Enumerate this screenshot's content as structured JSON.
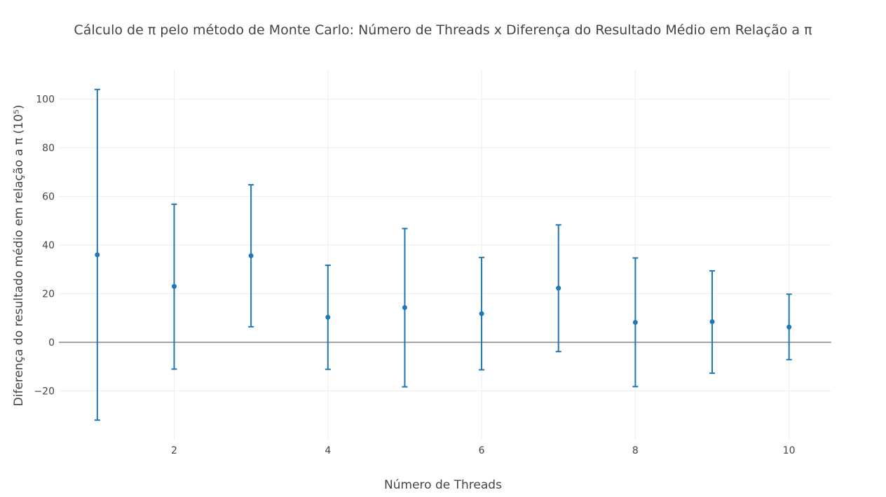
{
  "chart_data": {
    "type": "scatter",
    "title": "Cálculo de π pelo método de Monte Carlo: Número de Threads x Diferença do Resultado Médio  em Relação a  π",
    "xlabel": "Número de Threads",
    "ylabel": "Diferença do resultado médio em relação a π (10⁵)",
    "xlim": [
      0.5,
      10.55
    ],
    "ylim": [
      -40,
      112
    ],
    "xticks": [
      2,
      4,
      6,
      8,
      10
    ],
    "yticks": [
      -20,
      0,
      20,
      40,
      60,
      80,
      100
    ],
    "grid": true,
    "zero_line": true,
    "color": "#1f77b4",
    "series": [
      {
        "x": [
          1,
          2,
          3,
          4,
          5,
          6,
          7,
          8,
          9,
          10
        ],
        "y": [
          36.0,
          23.0,
          35.6,
          10.3,
          14.3,
          11.8,
          22.3,
          8.2,
          8.5,
          6.3
        ],
        "error_upper": [
          104.0,
          56.8,
          64.8,
          31.7,
          46.8,
          34.9,
          48.3,
          34.7,
          29.4,
          19.8
        ],
        "error_lower": [
          -32.0,
          -11.0,
          6.4,
          -11.1,
          -18.3,
          -11.3,
          -3.8,
          -18.2,
          -12.7,
          -7.1
        ]
      }
    ]
  }
}
